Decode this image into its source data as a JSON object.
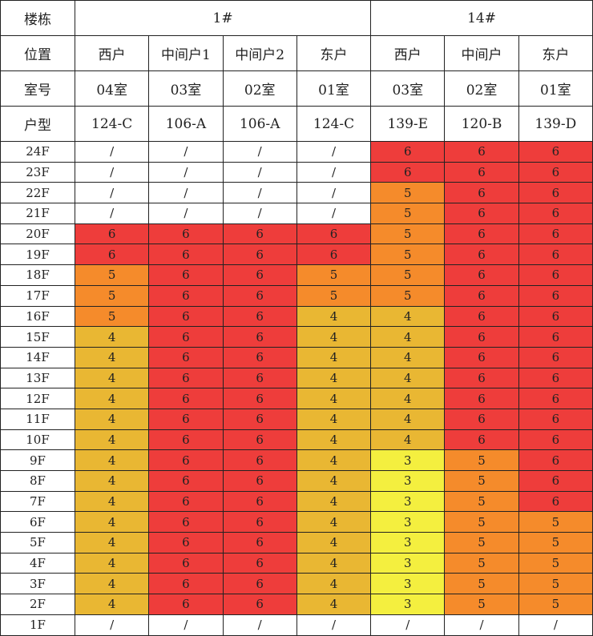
{
  "header": {
    "labels": [
      "楼栋",
      "位置",
      "室号",
      "户型"
    ],
    "buildings": [
      "1#",
      "14#"
    ],
    "positions": [
      "西户",
      "中间户1",
      "中间户2",
      "东户",
      "西户",
      "中间户",
      "东户"
    ],
    "rooms": [
      "04室",
      "03室",
      "02室",
      "01室",
      "03室",
      "02室",
      "01室"
    ],
    "types": [
      "124-C",
      "106-A",
      "106-A",
      "124-C",
      "139-E",
      "120-B",
      "139-D"
    ]
  },
  "rows": [
    {
      "floor": "24F",
      "cells": [
        "/",
        "/",
        "/",
        "/",
        6,
        6,
        6
      ]
    },
    {
      "floor": "23F",
      "cells": [
        "/",
        "/",
        "/",
        "/",
        6,
        6,
        6
      ]
    },
    {
      "floor": "22F",
      "cells": [
        "/",
        "/",
        "/",
        "/",
        5,
        6,
        6
      ]
    },
    {
      "floor": "21F",
      "cells": [
        "/",
        "/",
        "/",
        "/",
        5,
        6,
        6
      ]
    },
    {
      "floor": "20F",
      "cells": [
        6,
        6,
        6,
        6,
        5,
        6,
        6
      ]
    },
    {
      "floor": "19F",
      "cells": [
        6,
        6,
        6,
        6,
        5,
        6,
        6
      ]
    },
    {
      "floor": "18F",
      "cells": [
        5,
        6,
        6,
        5,
        5,
        6,
        6
      ]
    },
    {
      "floor": "17F",
      "cells": [
        5,
        6,
        6,
        5,
        5,
        6,
        6
      ]
    },
    {
      "floor": "16F",
      "cells": [
        5,
        6,
        6,
        4,
        4,
        6,
        6
      ]
    },
    {
      "floor": "15F",
      "cells": [
        4,
        6,
        6,
        4,
        4,
        6,
        6
      ]
    },
    {
      "floor": "14F",
      "cells": [
        4,
        6,
        6,
        4,
        4,
        6,
        6
      ]
    },
    {
      "floor": "13F",
      "cells": [
        4,
        6,
        6,
        4,
        4,
        6,
        6
      ]
    },
    {
      "floor": "12F",
      "cells": [
        4,
        6,
        6,
        4,
        4,
        6,
        6
      ]
    },
    {
      "floor": "11F",
      "cells": [
        4,
        6,
        6,
        4,
        4,
        6,
        6
      ]
    },
    {
      "floor": "10F",
      "cells": [
        4,
        6,
        6,
        4,
        4,
        6,
        6
      ]
    },
    {
      "floor": "9F",
      "cells": [
        4,
        6,
        6,
        4,
        3,
        5,
        6
      ]
    },
    {
      "floor": "8F",
      "cells": [
        4,
        6,
        6,
        4,
        3,
        5,
        6
      ]
    },
    {
      "floor": "7F",
      "cells": [
        4,
        6,
        6,
        4,
        3,
        5,
        6
      ]
    },
    {
      "floor": "6F",
      "cells": [
        4,
        6,
        6,
        4,
        3,
        5,
        5
      ]
    },
    {
      "floor": "5F",
      "cells": [
        4,
        6,
        6,
        4,
        3,
        5,
        5
      ]
    },
    {
      "floor": "4F",
      "cells": [
        4,
        6,
        6,
        4,
        3,
        5,
        5
      ]
    },
    {
      "floor": "3F",
      "cells": [
        4,
        6,
        6,
        4,
        3,
        5,
        5
      ]
    },
    {
      "floor": "2F",
      "cells": [
        4,
        6,
        6,
        4,
        3,
        5,
        5
      ]
    },
    {
      "floor": "1F",
      "cells": [
        "/",
        "/",
        "/",
        "/",
        "/",
        "/",
        "/"
      ]
    }
  ]
}
